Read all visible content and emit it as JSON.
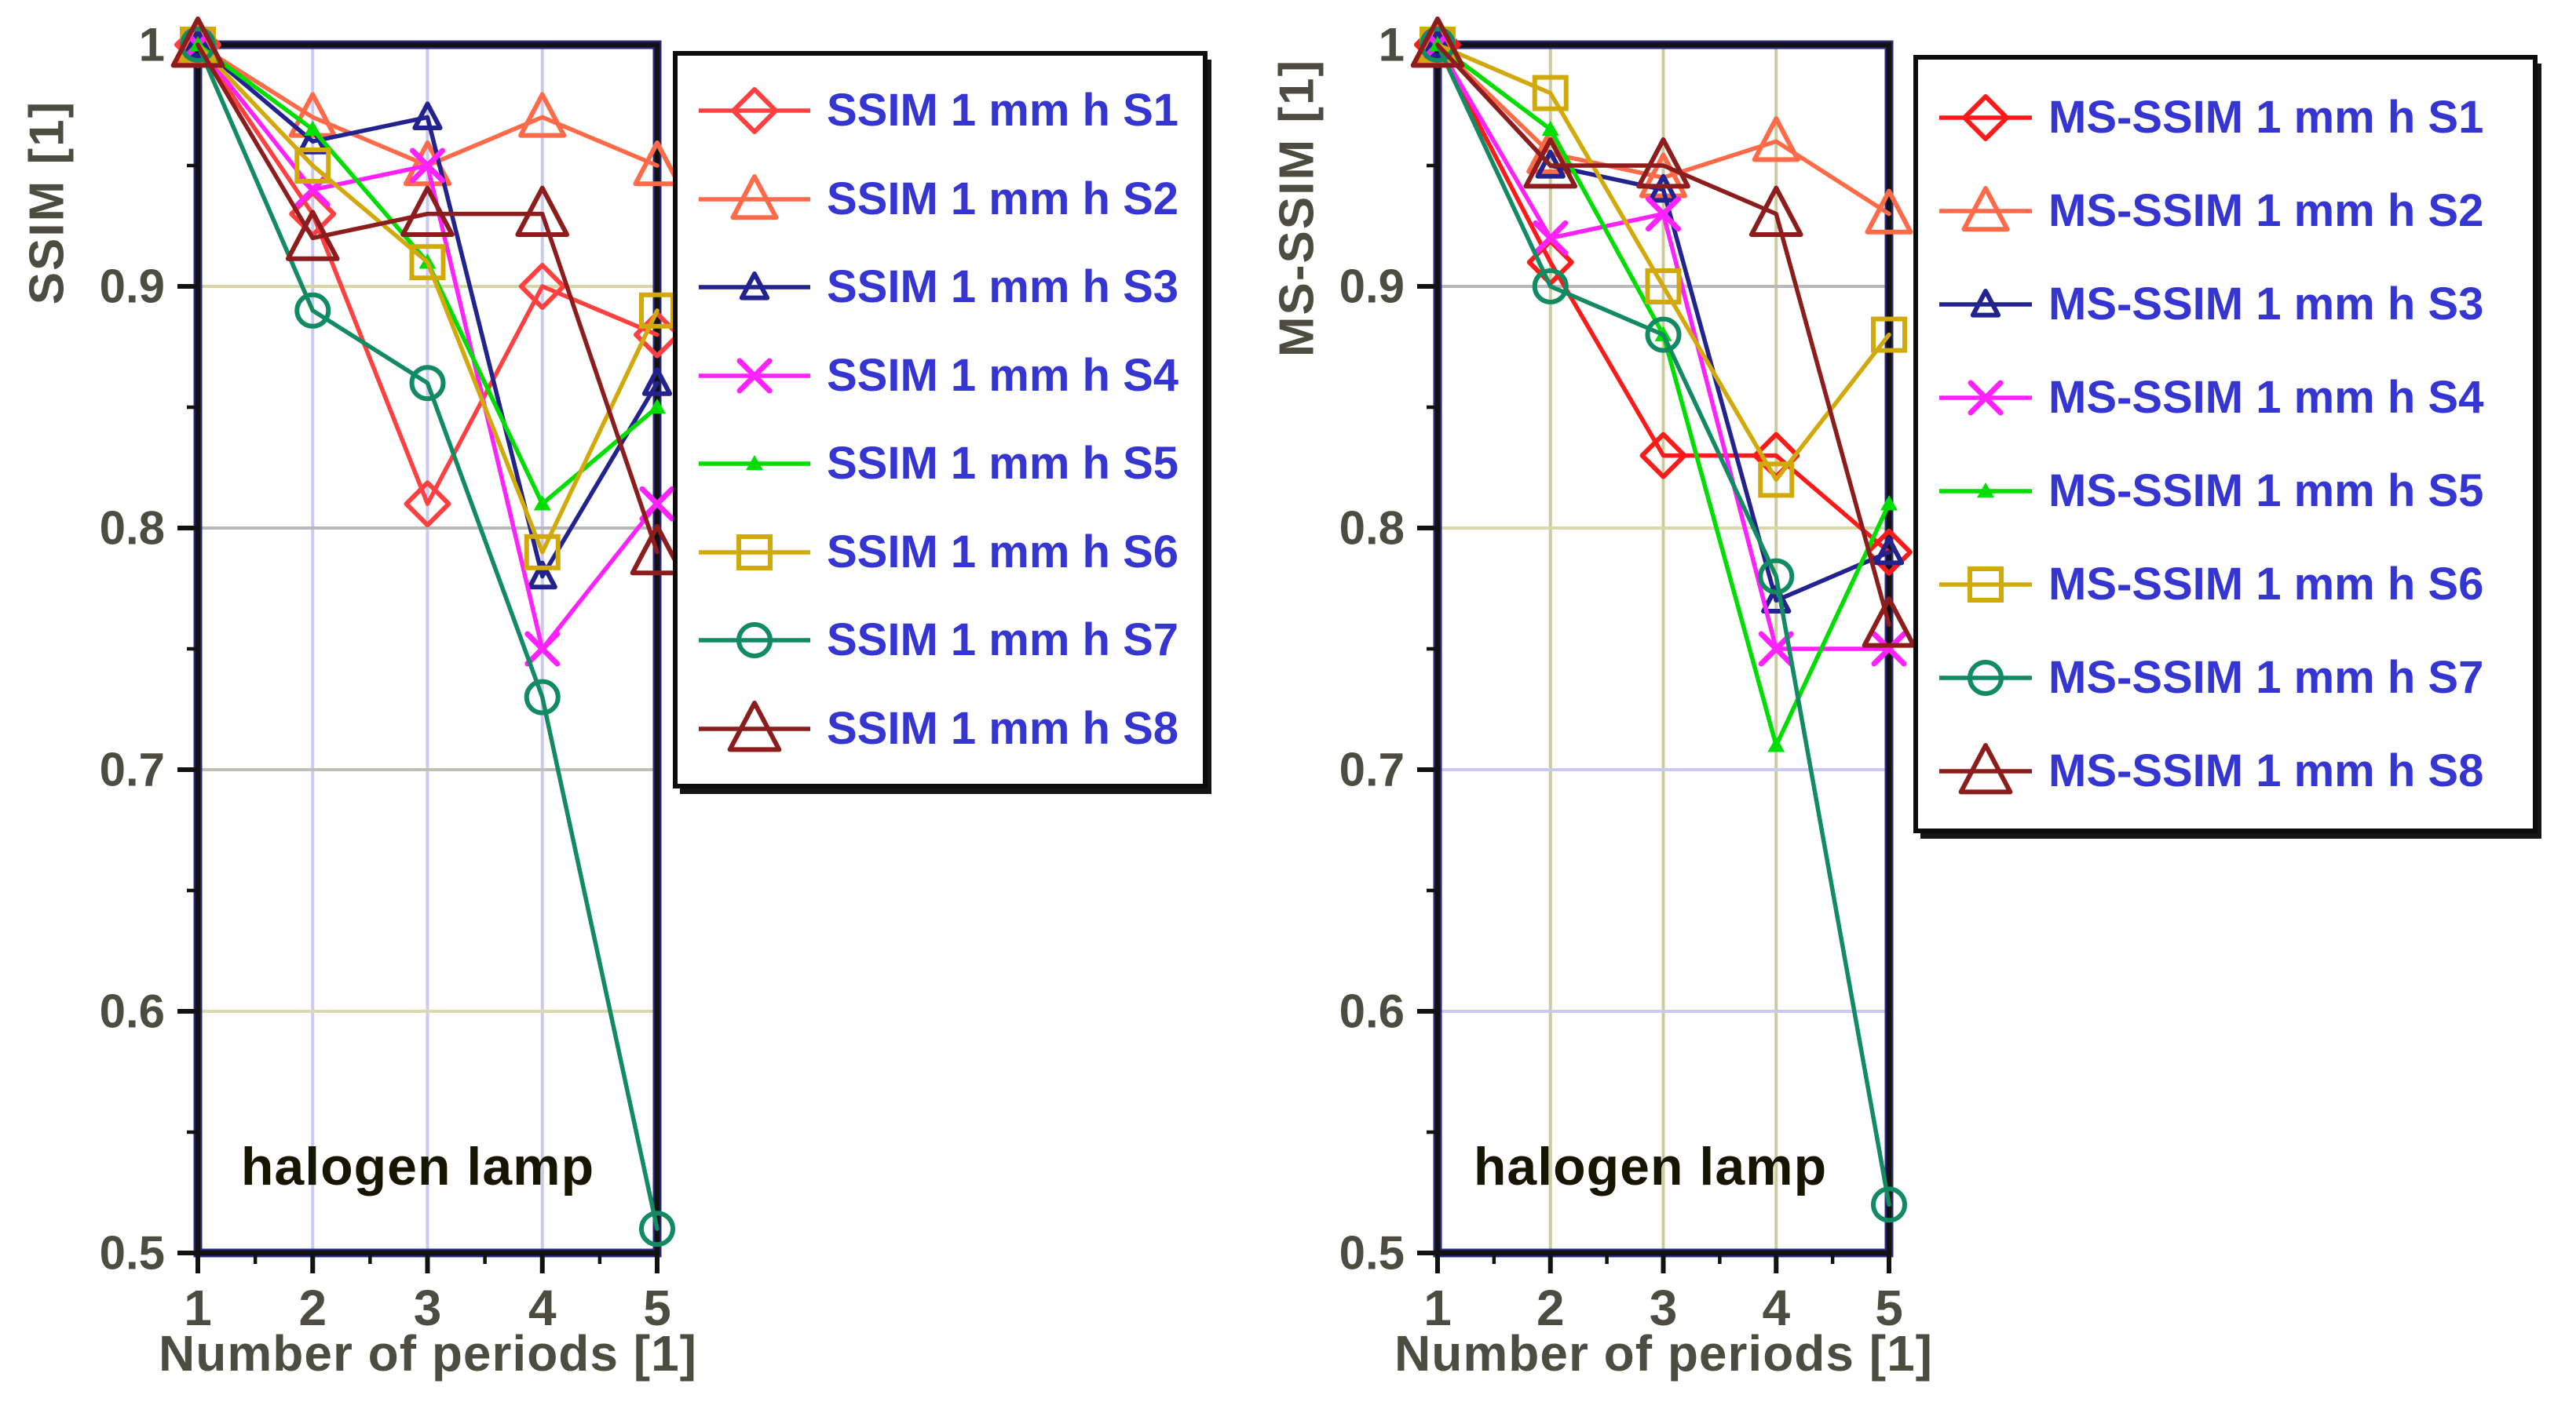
{
  "styles": {
    "legend_text_color": "#3535d2",
    "axis_text_color": "#4c4c40",
    "tick_color": "#121212",
    "frame_color": "#121212",
    "frame_accent_color": "#2a2a7e",
    "annotation_color": "#161600",
    "background": "#ffffff"
  },
  "chart_data": [
    {
      "type": "line",
      "title": "",
      "ylabel": "SSIM [1]",
      "xlabel": "Number of periods [1]",
      "annotation": "halogen lamp",
      "x": [
        1,
        2,
        3,
        4,
        5
      ],
      "x_ticks": [
        1,
        2,
        3,
        4,
        5
      ],
      "y_ticks": [
        1,
        0.9,
        0.8,
        0.7,
        0.6,
        0.5
      ],
      "xlim": [
        1,
        5
      ],
      "ylim": [
        0.5,
        1
      ],
      "grid_on": true,
      "legend_position": "outside-right",
      "grid": {
        "vertical_x": [
          2,
          3,
          4
        ],
        "vertical_color": "#c9c9f2",
        "horizontal": [
          {
            "y": 0.9,
            "color": "#d6d6a4"
          },
          {
            "y": 0.8,
            "color": "#b8b8b8"
          },
          {
            "y": 0.7,
            "color": "#c0c0b4"
          },
          {
            "y": 0.6,
            "color": "#dadaae"
          }
        ]
      },
      "series": [
        {
          "name": "SSIM 1 mm h S1",
          "color": "#ff4040",
          "marker": "diamond",
          "values": [
            1,
            0.93,
            0.81,
            0.9,
            0.88
          ]
        },
        {
          "name": "SSIM 1 mm h S2",
          "color": "#ff6a48",
          "marker": "triangle",
          "values": [
            1,
            0.97,
            0.95,
            0.97,
            0.95
          ]
        },
        {
          "name": "SSIM 1 mm h S3",
          "color": "#23238f",
          "marker": "triangle-small",
          "values": [
            1,
            0.96,
            0.97,
            0.78,
            0.86
          ]
        },
        {
          "name": "SSIM 1 mm h S4",
          "color": "#ff22ff",
          "marker": "x",
          "values": [
            1,
            0.94,
            0.95,
            0.75,
            0.81
          ]
        },
        {
          "name": "SSIM 1 mm h S5",
          "color": "#00dd00",
          "marker": "tick",
          "values": [
            1,
            0.965,
            0.91,
            0.81,
            0.85
          ]
        },
        {
          "name": "SSIM 1 mm h S6",
          "color": "#d2a90a",
          "marker": "square",
          "values": [
            1,
            0.95,
            0.91,
            0.79,
            0.89
          ]
        },
        {
          "name": "SSIM 1 mm h S7",
          "color": "#128a62",
          "marker": "circle",
          "values": [
            1,
            0.89,
            0.86,
            0.73,
            0.51
          ]
        },
        {
          "name": "SSIM 1 mm h S8",
          "color": "#8d1c1c",
          "marker": "triangle-large",
          "values": [
            1,
            0.92,
            0.93,
            0.93,
            0.79
          ]
        }
      ]
    },
    {
      "type": "line",
      "title": "",
      "ylabel": "MS-SSIM [1]",
      "xlabel": "Number of periods [1]",
      "annotation": "halogen lamp",
      "x": [
        1,
        2,
        3,
        4,
        5
      ],
      "x_ticks": [
        1,
        2,
        3,
        4,
        5
      ],
      "y_ticks": [
        1,
        0.9,
        0.8,
        0.7,
        0.6,
        0.5
      ],
      "xlim": [
        1,
        5
      ],
      "ylim": [
        0.5,
        1
      ],
      "grid_on": true,
      "legend_position": "outside-right",
      "grid": {
        "vertical_x": [
          2,
          3,
          4
        ],
        "vertical_color": "#cbcb9e",
        "horizontal": [
          {
            "y": 0.9,
            "color": "#b8b8b8"
          },
          {
            "y": 0.8,
            "color": "#d8d8a8"
          },
          {
            "y": 0.7,
            "color": "#c9c9f2"
          },
          {
            "y": 0.6,
            "color": "#c9c9f2"
          }
        ]
      },
      "series": [
        {
          "name": "MS-SSIM 1 mm h S1",
          "color": "#ff1a1a",
          "marker": "diamond",
          "values": [
            1,
            0.91,
            0.83,
            0.83,
            0.79
          ]
        },
        {
          "name": "MS-SSIM 1 mm h S2",
          "color": "#ff6a48",
          "marker": "triangle",
          "values": [
            1,
            0.955,
            0.945,
            0.96,
            0.93
          ]
        },
        {
          "name": "MS-SSIM 1 mm h S3",
          "color": "#23238f",
          "marker": "triangle-small",
          "values": [
            1,
            0.95,
            0.94,
            0.77,
            0.79
          ]
        },
        {
          "name": "MS-SSIM 1 mm h S4",
          "color": "#ff22ff",
          "marker": "x",
          "values": [
            1,
            0.92,
            0.93,
            0.75,
            0.75
          ]
        },
        {
          "name": "MS-SSIM 1 mm h S5",
          "color": "#00dd00",
          "marker": "tick",
          "values": [
            1,
            0.965,
            0.88,
            0.71,
            0.81
          ]
        },
        {
          "name": "MS-SSIM 1 mm h S6",
          "color": "#d2a90a",
          "marker": "square",
          "values": [
            1,
            0.98,
            0.9,
            0.82,
            0.88
          ]
        },
        {
          "name": "MS-SSIM 1 mm h S7",
          "color": "#128a62",
          "marker": "circle",
          "values": [
            1,
            0.9,
            0.88,
            0.78,
            0.52
          ]
        },
        {
          "name": "MS-SSIM 1 mm h S8",
          "color": "#8d1c1c",
          "marker": "triangle-large",
          "values": [
            1,
            0.95,
            0.95,
            0.93,
            0.76
          ]
        }
      ]
    }
  ]
}
